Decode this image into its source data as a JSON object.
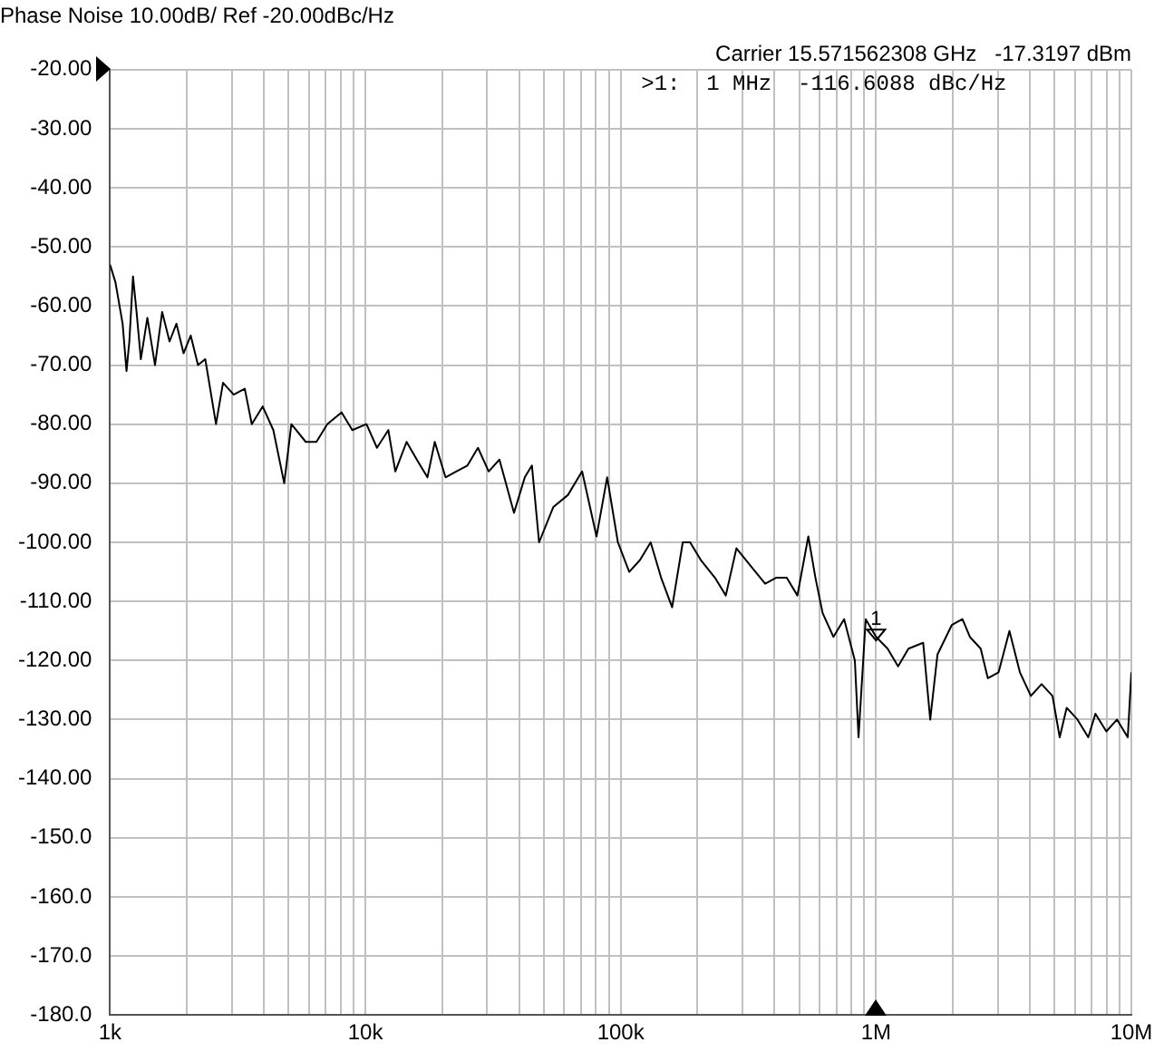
{
  "chart_data": {
    "type": "line",
    "title": "Phase Noise 10.00dB/ Ref -20.00dBc/Hz",
    "annotations": [
      "Carrier 15.571562308 GHz   -17.3197 dBm",
      ">1:  1 MHz  -116.6088 dBc/Hz",
      {
        "text": "1",
        "x": 1000000,
        "y": -116.6088
      }
    ],
    "log": "x",
    "grid": true,
    "legend": false,
    "marker": "none",
    "line_style": "solid",
    "xlim": [
      1000,
      10000000
    ],
    "ylim": [
      -180,
      -20
    ],
    "xticks": [
      {
        "value": 1000,
        "label": "1k"
      },
      {
        "value": 2000,
        "label": null
      },
      {
        "value": 3000,
        "label": null
      },
      {
        "value": 4000,
        "label": null
      },
      {
        "value": 5000,
        "label": null
      },
      {
        "value": 6000,
        "label": null
      },
      {
        "value": 7000,
        "label": null
      },
      {
        "value": 8000,
        "label": null
      },
      {
        "value": 9000,
        "label": null
      },
      {
        "value": 10000,
        "label": "10k"
      },
      {
        "value": 20000,
        "label": null
      },
      {
        "value": 30000,
        "label": null
      },
      {
        "value": 40000,
        "label": null
      },
      {
        "value": 50000,
        "label": null
      },
      {
        "value": 60000,
        "label": null
      },
      {
        "value": 70000,
        "label": null
      },
      {
        "value": 80000,
        "label": null
      },
      {
        "value": 90000,
        "label": null
      },
      {
        "value": 100000,
        "label": "100k"
      },
      {
        "value": 200000,
        "label": null
      },
      {
        "value": 300000,
        "label": null
      },
      {
        "value": 400000,
        "label": null
      },
      {
        "value": 500000,
        "label": null
      },
      {
        "value": 600000,
        "label": null
      },
      {
        "value": 700000,
        "label": null
      },
      {
        "value": 800000,
        "label": null
      },
      {
        "value": 900000,
        "label": null
      },
      {
        "value": 1000000,
        "label": "1M"
      },
      {
        "value": 2000000,
        "label": null
      },
      {
        "value": 3000000,
        "label": null
      },
      {
        "value": 4000000,
        "label": null
      },
      {
        "value": 5000000,
        "label": null
      },
      {
        "value": 6000000,
        "label": null
      },
      {
        "value": 7000000,
        "label": null
      },
      {
        "value": 8000000,
        "label": null
      },
      {
        "value": 9000000,
        "label": null
      },
      {
        "value": 10000000,
        "label": "10M"
      }
    ],
    "yticks": [
      {
        "value": -20,
        "label": "-20.00"
      },
      {
        "value": -30,
        "label": "-30.00"
      },
      {
        "value": -40,
        "label": "-40.00"
      },
      {
        "value": -50,
        "label": "-50.00"
      },
      {
        "value": -60,
        "label": "-60.00"
      },
      {
        "value": -70,
        "label": "-70.00"
      },
      {
        "value": -80,
        "label": "-80.00"
      },
      {
        "value": -90,
        "label": "-90.00"
      },
      {
        "value": -100,
        "label": "-100.00"
      },
      {
        "value": -110,
        "label": "-110.00"
      },
      {
        "value": -120,
        "label": "-120.00"
      },
      {
        "value": -130,
        "label": "-130.00"
      },
      {
        "value": -140,
        "label": "-140.00"
      },
      {
        "value": -150,
        "label": "-150.0"
      },
      {
        "value": -160,
        "label": "-160.0"
      },
      {
        "value": -170,
        "label": "-170.0"
      },
      {
        "value": -180,
        "label": "-180.0"
      }
    ],
    "series": [
      {
        "color": "#000000",
        "x": [
          1000,
          1050,
          1120,
          1160,
          1190,
          1230,
          1270,
          1320,
          1400,
          1500,
          1600,
          1710,
          1820,
          1940,
          2070,
          2210,
          2360,
          2600,
          2770,
          3050,
          3370,
          3590,
          3960,
          4360,
          4810,
          5130,
          5840,
          6430,
          7090,
          8070,
          8890,
          10100,
          11100,
          12300,
          13100,
          14500,
          15900,
          17500,
          18700,
          20600,
          22700,
          25100,
          27600,
          30400,
          33500,
          38200,
          42100,
          44900,
          47900,
          54500,
          62100,
          70600,
          80400,
          88500,
          97500,
          108000,
          119000,
          131000,
          144000,
          159000,
          175000,
          187000,
          206000,
          234000,
          258000,
          284000,
          323000,
          368000,
          406000,
          447000,
          492000,
          543000,
          579000,
          618000,
          681000,
          750000,
          826000,
          854000,
          911000,
          1000000,
          1110000,
          1220000,
          1340000,
          1530000,
          1630000,
          1740000,
          1980000,
          2180000,
          2330000,
          2570000,
          2740000,
          3020000,
          3330000,
          3660000,
          4040000,
          4450000,
          4910000,
          5240000,
          5580000,
          6150000,
          6780000,
          7230000,
          7980000,
          8790000,
          9680000,
          10000000
        ],
        "values": [
          -53,
          -56,
          -63,
          -71,
          -66,
          -55,
          -61,
          -69,
          -62,
          -70,
          -61,
          -66,
          -63,
          -68,
          -65,
          -70,
          -69,
          -80,
          -73,
          -75,
          -74,
          -80,
          -77,
          -81,
          -90,
          -80,
          -83,
          -83,
          -80,
          -78,
          -81,
          -80,
          -84,
          -81,
          -88,
          -83,
          -86,
          -89,
          -83,
          -89,
          -88,
          -87,
          -84,
          -88,
          -86,
          -95,
          -89,
          -87,
          -100,
          -94,
          -92,
          -88,
          -99,
          -89,
          -100,
          -105,
          -103,
          -100,
          -106,
          -111,
          -100,
          -100,
          -103,
          -106,
          -109,
          -101,
          -104,
          -107,
          -106,
          -106,
          -109,
          -99,
          -106,
          -112,
          -116,
          -113,
          -120,
          -133,
          -113,
          -116,
          -118,
          -121,
          -118,
          -117,
          -130,
          -119,
          -114,
          -113,
          -116,
          -118,
          -123,
          -122,
          -115,
          -122,
          -126,
          -124,
          -126,
          -133,
          -128,
          -130,
          -133,
          -129,
          -132,
          -130,
          -133,
          -122
        ]
      }
    ]
  }
}
